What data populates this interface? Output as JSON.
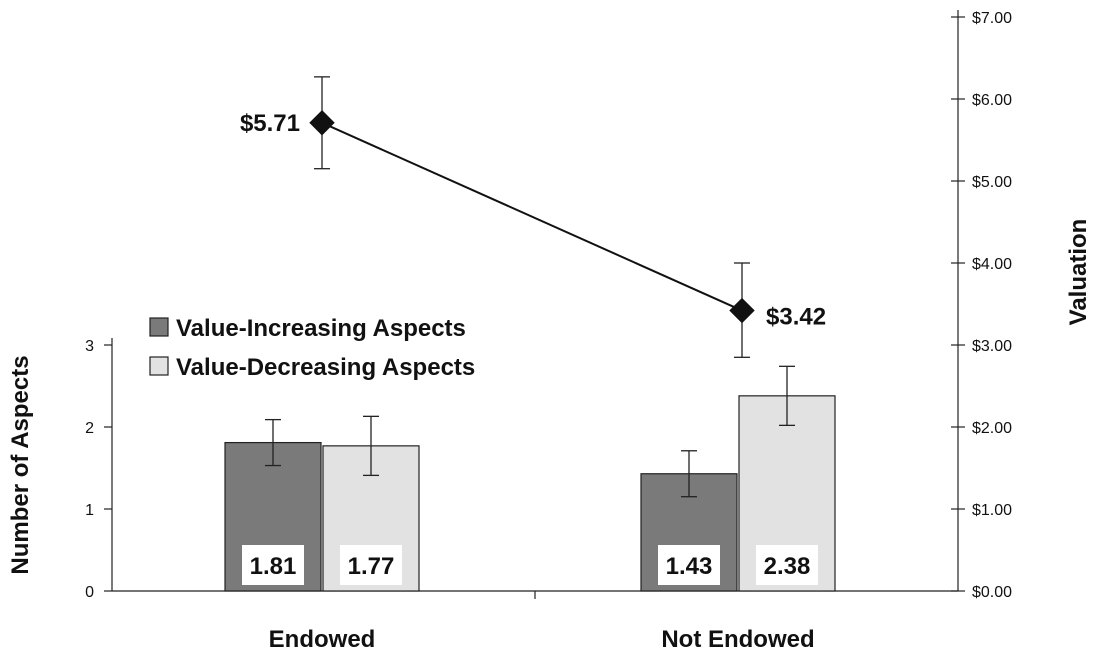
{
  "chart_data": {
    "type": "bar",
    "categories": [
      "Endowed",
      "Not Endowed"
    ],
    "left_axis": {
      "label": "Number of Aspects",
      "range": [
        0,
        3
      ],
      "ticks": [
        "0",
        "1",
        "2",
        "3"
      ],
      "tick_values": [
        0,
        1,
        2,
        3
      ]
    },
    "right_axis": {
      "label": "Valuation",
      "range": [
        0,
        7
      ],
      "ticks": [
        "$0.00",
        "$1.00",
        "$2.00",
        "$3.00",
        "$4.00",
        "$5.00",
        "$6.00",
        "$7.00"
      ],
      "tick_values": [
        0,
        1,
        2,
        3,
        4,
        5,
        6,
        7
      ]
    },
    "series": [
      {
        "name": "Value-Increasing Aspects",
        "type": "bar",
        "axis": "left",
        "color": "#7a7a7a",
        "values": [
          1.81,
          1.43
        ],
        "labels": [
          "1.81",
          "1.43"
        ],
        "error_low": [
          1.53,
          1.15
        ],
        "error_high": [
          2.09,
          1.71
        ]
      },
      {
        "name": "Value-Decreasing Aspects",
        "type": "bar",
        "axis": "left",
        "color": "#e2e2e2",
        "values": [
          1.77,
          2.38
        ],
        "labels": [
          "1.77",
          "2.38"
        ],
        "error_low": [
          1.41,
          2.02
        ],
        "error_high": [
          2.13,
          2.74
        ]
      },
      {
        "type": "line",
        "axis": "right",
        "color": "#111111",
        "marker": "diamond",
        "values": [
          5.71,
          3.42
        ],
        "labels": [
          "$5.71",
          "$3.42"
        ],
        "error_low": [
          5.15,
          2.85
        ],
        "error_high": [
          6.27,
          4.0
        ]
      }
    ],
    "legend": {
      "placement": "upper-left",
      "items": [
        "Value-Increasing Aspects",
        "Value-Decreasing Aspects"
      ]
    },
    "grid": false
  }
}
